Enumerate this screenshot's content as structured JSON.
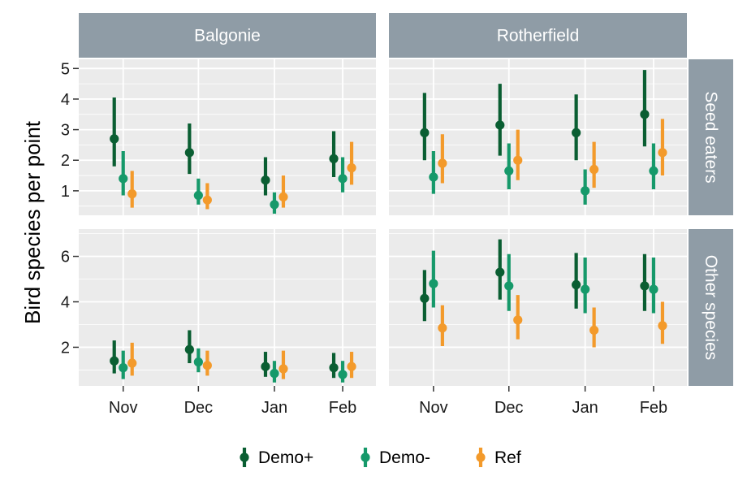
{
  "chart_data": {
    "type": "pointrange",
    "title": "",
    "ylabel": "Bird species per point",
    "xlabel": "",
    "colors": {
      "panel_bg": "#ebebeb",
      "grid": "#ffffff",
      "strip_bg": "#8f9ca6",
      "strip_text": "#ffffff",
      "Demo+": "#0a5e32",
      "Demo-": "#16996a",
      "Ref": "#f39a2b"
    },
    "months": [
      "Nov",
      "Dec",
      "Jan",
      "Feb"
    ],
    "columns": [
      "Balgonie",
      "Rotherfield"
    ],
    "rows": [
      "Seed eaters",
      "Other species"
    ],
    "series_names": [
      "Demo+",
      "Demo-",
      "Ref"
    ],
    "legend_position": "bottom",
    "y_axes": {
      "Seed eaters": {
        "ylim": [
          0.2,
          5.3
        ],
        "ticks": [
          1,
          2,
          3,
          4,
          5
        ]
      },
      "Other species": {
        "ylim": [
          0.3,
          7.2
        ],
        "ticks": [
          2,
          4,
          6
        ]
      }
    },
    "panels": [
      {
        "column": "Balgonie",
        "row": "Seed eaters",
        "series": [
          {
            "name": "Demo+",
            "mid": [
              2.7,
              2.25,
              1.35,
              2.05
            ],
            "low": [
              1.8,
              1.55,
              0.85,
              1.45
            ],
            "high": [
              4.05,
              3.2,
              2.1,
              2.95
            ]
          },
          {
            "name": "Demo-",
            "mid": [
              1.4,
              0.85,
              0.55,
              1.4
            ],
            "low": [
              0.85,
              0.55,
              0.25,
              0.95
            ],
            "high": [
              2.3,
              1.4,
              0.95,
              2.1
            ]
          },
          {
            "name": "Ref",
            "mid": [
              0.9,
              0.7,
              0.8,
              1.75
            ],
            "low": [
              0.45,
              0.4,
              0.45,
              1.2
            ],
            "high": [
              1.65,
              1.25,
              1.5,
              2.6
            ]
          }
        ]
      },
      {
        "column": "Rotherfield",
        "row": "Seed eaters",
        "series": [
          {
            "name": "Demo+",
            "mid": [
              2.9,
              3.15,
              2.9,
              3.5
            ],
            "low": [
              2.0,
              2.15,
              2.0,
              2.45
            ],
            "high": [
              4.2,
              4.5,
              4.15,
              4.95
            ]
          },
          {
            "name": "Demo-",
            "mid": [
              1.45,
              1.65,
              1.0,
              1.65
            ],
            "low": [
              0.9,
              1.05,
              0.55,
              1.05
            ],
            "high": [
              2.3,
              2.55,
              1.7,
              2.55
            ]
          },
          {
            "name": "Ref",
            "mid": [
              1.9,
              2.0,
              1.7,
              2.25
            ],
            "low": [
              1.25,
              1.35,
              1.1,
              1.5
            ],
            "high": [
              2.85,
              3.0,
              2.6,
              3.35
            ]
          }
        ]
      },
      {
        "column": "Balgonie",
        "row": "Other species",
        "series": [
          {
            "name": "Demo+",
            "mid": [
              1.4,
              1.9,
              1.15,
              1.1
            ],
            "low": [
              0.85,
              1.3,
              0.7,
              0.65
            ],
            "high": [
              2.3,
              2.75,
              1.8,
              1.75
            ]
          },
          {
            "name": "Demo-",
            "mid": [
              1.1,
              1.35,
              0.85,
              0.8
            ],
            "low": [
              0.6,
              0.9,
              0.45,
              0.45
            ],
            "high": [
              1.85,
              1.95,
              1.4,
              1.4
            ]
          },
          {
            "name": "Ref",
            "mid": [
              1.3,
              1.2,
              1.05,
              1.15
            ],
            "low": [
              0.75,
              0.75,
              0.6,
              0.65
            ],
            "high": [
              2.2,
              1.85,
              1.85,
              1.8
            ]
          }
        ]
      },
      {
        "column": "Rotherfield",
        "row": "Other species",
        "series": [
          {
            "name": "Demo+",
            "mid": [
              4.15,
              5.3,
              4.75,
              4.7
            ],
            "low": [
              3.15,
              4.1,
              3.7,
              3.6
            ],
            "high": [
              5.4,
              6.75,
              6.15,
              6.1
            ]
          },
          {
            "name": "Demo-",
            "mid": [
              4.8,
              4.7,
              4.55,
              4.55
            ],
            "low": [
              3.75,
              3.6,
              3.5,
              3.5
            ],
            "high": [
              6.25,
              6.1,
              5.95,
              5.95
            ]
          },
          {
            "name": "Ref",
            "mid": [
              2.85,
              3.2,
              2.75,
              2.95
            ],
            "low": [
              2.05,
              2.35,
              2.0,
              2.15
            ],
            "high": [
              3.85,
              4.3,
              3.75,
              4.0
            ]
          }
        ]
      }
    ]
  }
}
